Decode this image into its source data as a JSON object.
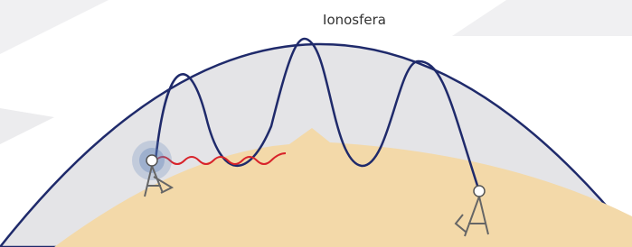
{
  "labels": {
    "ionosphere": "Ionosfera"
  }
}
